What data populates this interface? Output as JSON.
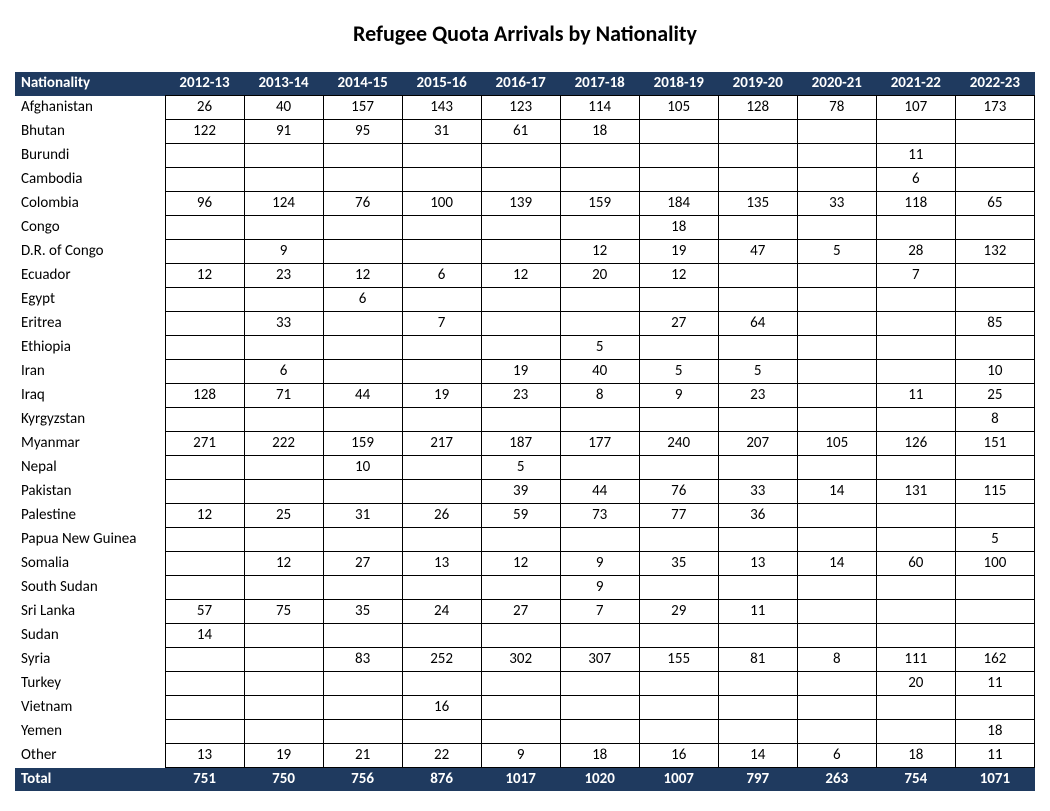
{
  "title": "Refugee Quota Arrivals by Nationality",
  "nat_header": "Nationality",
  "total_label": "Total",
  "colors": {
    "header_bg": "#1f3a5f",
    "header_fg": "#ffffff",
    "grid": "#000000",
    "page_bg": "#ffffff"
  },
  "years": [
    "2012-13",
    "2013-14",
    "2014-15",
    "2015-16",
    "2016-17",
    "2017-18",
    "2018-19",
    "2019-20",
    "2020-21",
    "2021-22",
    "2022-23"
  ],
  "rows": [
    {
      "nat": "Afghanistan",
      "vals": [
        "26",
        "40",
        "157",
        "143",
        "123",
        "114",
        "105",
        "128",
        "78",
        "107",
        "173"
      ]
    },
    {
      "nat": "Bhutan",
      "vals": [
        "122",
        "91",
        "95",
        "31",
        "61",
        "18",
        "",
        "",
        "",
        "",
        ""
      ]
    },
    {
      "nat": "Burundi",
      "vals": [
        "",
        "",
        "",
        "",
        "",
        "",
        "",
        "",
        "",
        "11",
        ""
      ]
    },
    {
      "nat": "Cambodia",
      "vals": [
        "",
        "",
        "",
        "",
        "",
        "",
        "",
        "",
        "",
        "6",
        ""
      ]
    },
    {
      "nat": "Colombia",
      "vals": [
        "96",
        "124",
        "76",
        "100",
        "139",
        "159",
        "184",
        "135",
        "33",
        "118",
        "65"
      ]
    },
    {
      "nat": "Congo",
      "vals": [
        "",
        "",
        "",
        "",
        "",
        "",
        "18",
        "",
        "",
        "",
        ""
      ]
    },
    {
      "nat": "D.R. of Congo",
      "vals": [
        "",
        "9",
        "",
        "",
        "",
        "12",
        "19",
        "47",
        "5",
        "28",
        "132"
      ]
    },
    {
      "nat": "Ecuador",
      "vals": [
        "12",
        "23",
        "12",
        "6",
        "12",
        "20",
        "12",
        "",
        "",
        "7",
        ""
      ]
    },
    {
      "nat": "Egypt",
      "vals": [
        "",
        "",
        "6",
        "",
        "",
        "",
        "",
        "",
        "",
        "",
        ""
      ]
    },
    {
      "nat": "Eritrea",
      "vals": [
        "",
        "33",
        "",
        "7",
        "",
        "",
        "27",
        "64",
        "",
        "",
        "85"
      ]
    },
    {
      "nat": "Ethiopia",
      "vals": [
        "",
        "",
        "",
        "",
        "",
        "5",
        "",
        "",
        "",
        "",
        ""
      ]
    },
    {
      "nat": "Iran",
      "vals": [
        "",
        "6",
        "",
        "",
        "19",
        "40",
        "5",
        "5",
        "",
        "",
        "10"
      ]
    },
    {
      "nat": "Iraq",
      "vals": [
        "128",
        "71",
        "44",
        "19",
        "23",
        "8",
        "9",
        "23",
        "",
        "11",
        "25"
      ]
    },
    {
      "nat": "Kyrgyzstan",
      "vals": [
        "",
        "",
        "",
        "",
        "",
        "",
        "",
        "",
        "",
        "",
        "8"
      ]
    },
    {
      "nat": "Myanmar",
      "vals": [
        "271",
        "222",
        "159",
        "217",
        "187",
        "177",
        "240",
        "207",
        "105",
        "126",
        "151"
      ]
    },
    {
      "nat": "Nepal",
      "vals": [
        "",
        "",
        "10",
        "",
        "5",
        "",
        "",
        "",
        "",
        "",
        ""
      ]
    },
    {
      "nat": "Pakistan",
      "vals": [
        "",
        "",
        "",
        "",
        "39",
        "44",
        "76",
        "33",
        "14",
        "131",
        "115"
      ]
    },
    {
      "nat": "Palestine",
      "vals": [
        "12",
        "25",
        "31",
        "26",
        "59",
        "73",
        "77",
        "36",
        "",
        "",
        ""
      ]
    },
    {
      "nat": "Papua New Guinea",
      "vals": [
        "",
        "",
        "",
        "",
        "",
        "",
        "",
        "",
        "",
        "",
        "5"
      ]
    },
    {
      "nat": "Somalia",
      "vals": [
        "",
        "12",
        "27",
        "13",
        "12",
        "9",
        "35",
        "13",
        "14",
        "60",
        "100"
      ]
    },
    {
      "nat": "South Sudan",
      "vals": [
        "",
        "",
        "",
        "",
        "",
        "9",
        "",
        "",
        "",
        "",
        ""
      ]
    },
    {
      "nat": "Sri Lanka",
      "vals": [
        "57",
        "75",
        "35",
        "24",
        "27",
        "7",
        "29",
        "11",
        "",
        "",
        ""
      ]
    },
    {
      "nat": "Sudan",
      "vals": [
        "14",
        "",
        "",
        "",
        "",
        "",
        "",
        "",
        "",
        "",
        ""
      ]
    },
    {
      "nat": "Syria",
      "vals": [
        "",
        "",
        "83",
        "252",
        "302",
        "307",
        "155",
        "81",
        "8",
        "111",
        "162"
      ]
    },
    {
      "nat": "Turkey",
      "vals": [
        "",
        "",
        "",
        "",
        "",
        "",
        "",
        "",
        "",
        "20",
        "11"
      ]
    },
    {
      "nat": "Vietnam",
      "vals": [
        "",
        "",
        "",
        "16",
        "",
        "",
        "",
        "",
        "",
        "",
        ""
      ]
    },
    {
      "nat": "Yemen",
      "vals": [
        "",
        "",
        "",
        "",
        "",
        "",
        "",
        "",
        "",
        "",
        "18"
      ]
    },
    {
      "nat": "Other",
      "vals": [
        "13",
        "19",
        "21",
        "22",
        "9",
        "18",
        "16",
        "14",
        "6",
        "18",
        "11"
      ]
    }
  ],
  "totals": [
    "751",
    "750",
    "756",
    "876",
    "1017",
    "1020",
    "1007",
    "797",
    "263",
    "754",
    "1071"
  ]
}
